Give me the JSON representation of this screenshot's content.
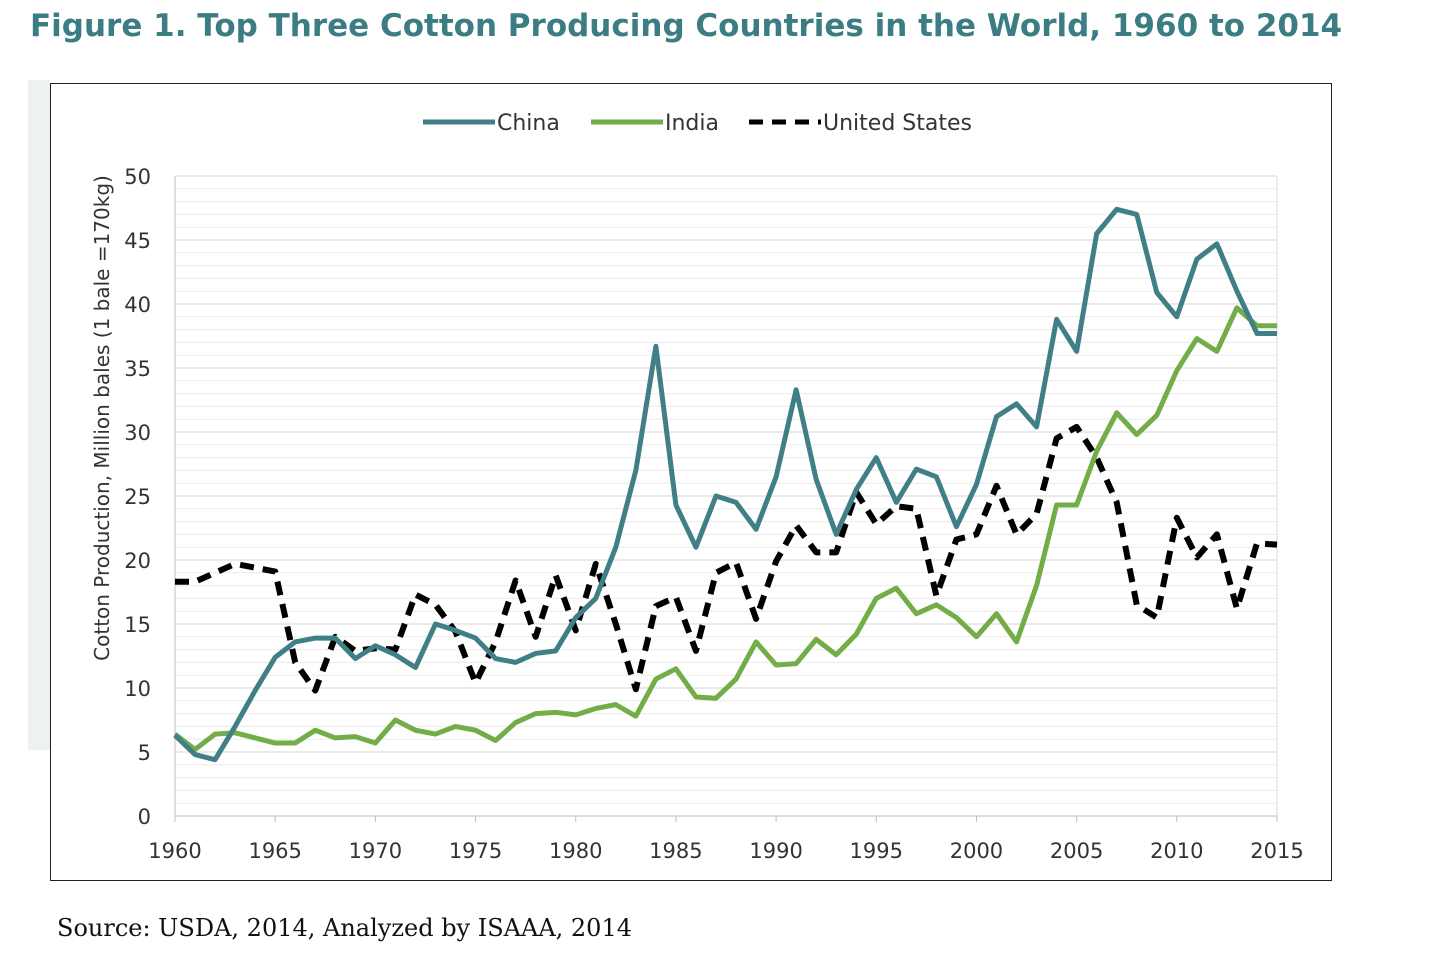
{
  "figure_title": "Figure 1. Top Three Cotton Producing Countries in the World, 1960 to 2014",
  "source": "Source: USDA, 2014, Analyzed by ISAAA, 2014",
  "chart_data": {
    "type": "line",
    "title": "Figure 1. Top Three Cotton Producing Countries in the World, 1960 to 2014",
    "xlabel": "",
    "ylabel": "Cotton Production, Million bales (1 bale =170kg)",
    "xlim": [
      1960,
      2015
    ],
    "ylim": [
      0,
      50
    ],
    "xticks": [
      1960,
      1965,
      1970,
      1975,
      1980,
      1985,
      1990,
      1995,
      2000,
      2005,
      2010,
      2015
    ],
    "yticks": [
      0,
      5,
      10,
      15,
      20,
      25,
      30,
      35,
      40,
      45,
      50
    ],
    "grid": true,
    "legend_position": "top-center",
    "x": [
      1960,
      1961,
      1962,
      1963,
      1964,
      1965,
      1966,
      1967,
      1968,
      1969,
      1970,
      1971,
      1972,
      1973,
      1974,
      1975,
      1976,
      1977,
      1978,
      1979,
      1980,
      1981,
      1982,
      1983,
      1984,
      1985,
      1986,
      1987,
      1988,
      1989,
      1990,
      1991,
      1992,
      1993,
      1994,
      1995,
      1996,
      1997,
      1998,
      1999,
      2000,
      2001,
      2002,
      2003,
      2004,
      2005,
      2006,
      2007,
      2008,
      2009,
      2010,
      2011,
      2012,
      2013,
      2014,
      2015
    ],
    "series": [
      {
        "name": "China",
        "color": "#417f86",
        "dash": "solid",
        "values": [
          6.3,
          4.8,
          4.4,
          7.0,
          9.8,
          12.4,
          13.6,
          13.9,
          13.9,
          12.3,
          13.3,
          12.6,
          11.6,
          15.0,
          14.5,
          13.9,
          12.3,
          12.0,
          12.7,
          12.9,
          15.5,
          17.0,
          21.0,
          27.0,
          36.7,
          24.3,
          21.0,
          25.0,
          24.5,
          22.4,
          26.5,
          33.3,
          26.3,
          22.0,
          25.5,
          28.0,
          24.5,
          27.1,
          26.5,
          22.6,
          25.9,
          31.2,
          32.2,
          30.4,
          38.8,
          36.3,
          45.5,
          47.4,
          47.0,
          40.9,
          39.0,
          43.5,
          44.7,
          41.0,
          37.7,
          37.7
        ]
      },
      {
        "name": "India",
        "color": "#72ad48",
        "dash": "solid",
        "values": [
          6.4,
          5.2,
          6.4,
          6.5,
          6.1,
          5.7,
          5.7,
          6.7,
          6.1,
          6.2,
          5.7,
          7.5,
          6.7,
          6.4,
          7.0,
          6.7,
          5.9,
          7.3,
          8.0,
          8.1,
          7.9,
          8.4,
          8.7,
          7.8,
          10.7,
          11.5,
          9.3,
          9.2,
          10.7,
          13.6,
          11.8,
          11.9,
          13.8,
          12.6,
          14.2,
          17.0,
          17.8,
          15.8,
          16.5,
          15.5,
          14.0,
          15.8,
          13.6,
          18.0,
          24.3,
          24.3,
          28.5,
          31.5,
          29.8,
          31.3,
          34.8,
          37.3,
          36.3,
          39.7,
          38.3,
          38.3
        ]
      },
      {
        "name": "United States",
        "color": "#000000",
        "dash": "dashed",
        "values": [
          18.3,
          18.3,
          19.0,
          19.7,
          19.4,
          19.1,
          12.0,
          9.8,
          14.0,
          12.9,
          13.1,
          13.0,
          17.3,
          16.5,
          14.4,
          10.4,
          13.6,
          18.4,
          14.0,
          18.8,
          14.5,
          19.7,
          15.0,
          9.9,
          16.4,
          17.1,
          12.9,
          19.0,
          19.8,
          15.4,
          19.9,
          22.7,
          20.6,
          20.6,
          25.3,
          22.8,
          24.2,
          24.0,
          17.2,
          21.6,
          22.0,
          25.8,
          22.0,
          23.6,
          29.5,
          30.4,
          28.0,
          24.5,
          16.5,
          15.5,
          23.3,
          20.2,
          22.0,
          16.2,
          21.3,
          21.2
        ]
      }
    ]
  }
}
